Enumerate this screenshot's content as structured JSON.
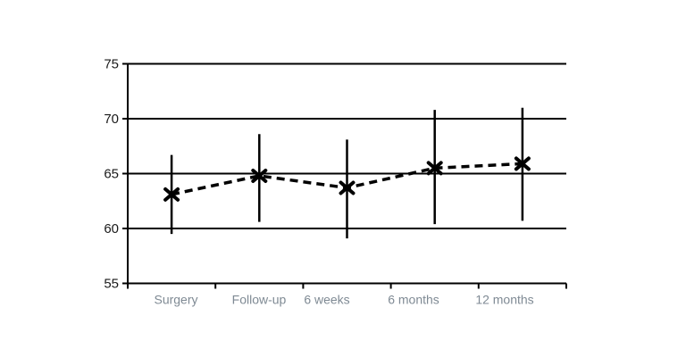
{
  "chart_data": {
    "type": "line",
    "title": "",
    "xlabel": "",
    "ylabel": "",
    "categories": [
      "Surgery",
      "Follow-up",
      "6 weeks",
      "6 months",
      "12 months"
    ],
    "series": [
      {
        "values": [
          63.1,
          64.8,
          63.7,
          65.5,
          65.9
        ],
        "ci_lower": [
          59.5,
          60.6,
          59.1,
          60.4,
          60.7
        ],
        "ci_upper": [
          66.7,
          68.6,
          68.1,
          70.8,
          71.0
        ],
        "marker": "x",
        "line_style": "dashed",
        "error_bars": "vertical-no-caps",
        "color": "#000000"
      }
    ],
    "ylim": [
      55,
      75
    ],
    "yticks": [
      55,
      60,
      65,
      70,
      75
    ],
    "grid": "horizontal",
    "legend": "none",
    "colors": {
      "axis": "#000000",
      "gridline": "#000000",
      "y_tick_labels": "#1a1a1a",
      "x_tick_labels": "#7f8a94",
      "background": "#ffffff"
    }
  }
}
